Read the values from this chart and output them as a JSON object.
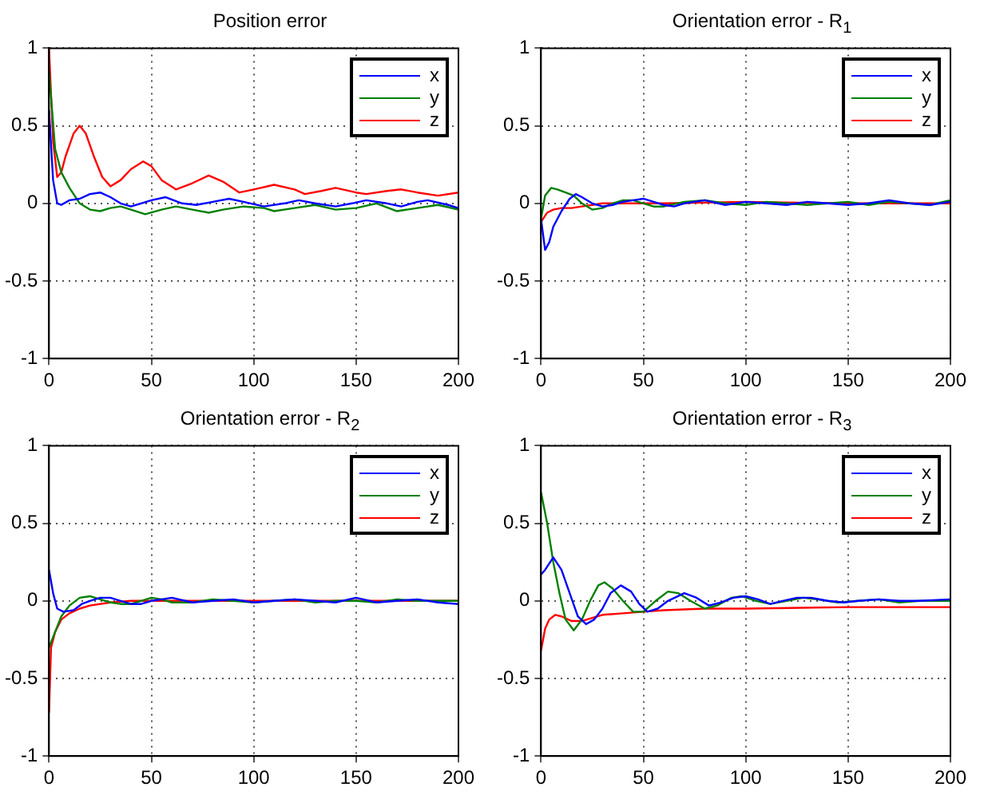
{
  "chart_data": [
    {
      "type": "line",
      "title": "Position error",
      "xlim": [
        0,
        200
      ],
      "xticks": [
        0,
        50,
        100,
        150,
        200
      ],
      "ylim": [
        -1,
        1
      ],
      "yticks": [
        -1,
        -0.5,
        0,
        0.5,
        1
      ],
      "grid": true,
      "legend": "top right",
      "series": [
        {
          "name": "x",
          "color": "#0000ff",
          "x": [
            0,
            2,
            4,
            6,
            10,
            15,
            20,
            25,
            30,
            35,
            40,
            45,
            50,
            57,
            65,
            72,
            80,
            88,
            95,
            105,
            115,
            122,
            130,
            140,
            148,
            155,
            165,
            172,
            180,
            185,
            195,
            200
          ],
          "values": [
            0.6,
            0.15,
            0.0,
            -0.01,
            0.02,
            0.03,
            0.06,
            0.07,
            0.04,
            0.0,
            -0.02,
            0.0,
            0.02,
            0.04,
            0.0,
            -0.01,
            0.01,
            0.03,
            0.01,
            -0.02,
            0.0,
            0.02,
            0.0,
            -0.02,
            0.0,
            0.02,
            0.0,
            -0.02,
            0.01,
            0.02,
            -0.01,
            -0.03
          ]
        },
        {
          "name": "y",
          "color": "#008000",
          "x": [
            0,
            3,
            6,
            10,
            15,
            20,
            25,
            30,
            35,
            40,
            47,
            55,
            62,
            70,
            78,
            85,
            95,
            105,
            110,
            120,
            130,
            140,
            150,
            160,
            170,
            180,
            190,
            200
          ],
          "values": [
            0.85,
            0.35,
            0.2,
            0.1,
            0.0,
            -0.04,
            -0.05,
            -0.03,
            -0.02,
            -0.04,
            -0.07,
            -0.04,
            -0.02,
            -0.04,
            -0.06,
            -0.04,
            -0.02,
            -0.03,
            -0.05,
            -0.03,
            -0.01,
            -0.04,
            -0.03,
            0.0,
            -0.05,
            -0.03,
            -0.01,
            -0.04
          ]
        },
        {
          "name": "z",
          "color": "#ff0000",
          "x": [
            0,
            2,
            4,
            6,
            8,
            12,
            15,
            18,
            22,
            26,
            30,
            35,
            40,
            46,
            50,
            55,
            62,
            70,
            78,
            85,
            93,
            100,
            110,
            120,
            125,
            133,
            140,
            150,
            155,
            165,
            172,
            180,
            190,
            200
          ],
          "values": [
            1.0,
            0.4,
            0.17,
            0.2,
            0.3,
            0.45,
            0.5,
            0.45,
            0.3,
            0.17,
            0.11,
            0.15,
            0.22,
            0.27,
            0.24,
            0.15,
            0.09,
            0.13,
            0.18,
            0.14,
            0.07,
            0.09,
            0.12,
            0.09,
            0.06,
            0.08,
            0.1,
            0.07,
            0.06,
            0.08,
            0.09,
            0.07,
            0.05,
            0.07
          ]
        }
      ]
    },
    {
      "type": "line",
      "title": "Orientation error - R$_{1}$",
      "xlim": [
        0,
        200
      ],
      "xticks": [
        0,
        50,
        100,
        150,
        200
      ],
      "ylim": [
        -1,
        1
      ],
      "yticks": [
        -1,
        -0.5,
        0,
        0.5,
        1
      ],
      "grid": true,
      "legend": "top right",
      "series": [
        {
          "name": "x",
          "color": "#0000ff",
          "x": [
            0,
            2,
            4,
            6,
            10,
            14,
            17,
            20,
            25,
            30,
            35,
            40,
            45,
            50,
            55,
            60,
            65,
            70,
            80,
            90,
            100,
            110,
            120,
            130,
            140,
            150,
            160,
            170,
            180,
            190,
            200
          ],
          "values": [
            -0.1,
            -0.3,
            -0.25,
            -0.15,
            -0.05,
            0.03,
            0.06,
            0.04,
            0.0,
            -0.02,
            -0.01,
            0.01,
            0.02,
            0.03,
            0.01,
            -0.01,
            -0.02,
            0.0,
            0.02,
            -0.01,
            0.01,
            0.0,
            -0.01,
            0.01,
            0.0,
            -0.01,
            0.0,
            0.02,
            0.0,
            -0.01,
            0.01
          ]
        },
        {
          "name": "y",
          "color": "#008000",
          "x": [
            0,
            2,
            5,
            8,
            12,
            16,
            20,
            25,
            30,
            35,
            40,
            45,
            50,
            55,
            60,
            70,
            80,
            90,
            100,
            110,
            120,
            130,
            140,
            150,
            160,
            170,
            180,
            190,
            200
          ],
          "values": [
            -0.1,
            0.05,
            0.1,
            0.09,
            0.07,
            0.05,
            0.0,
            -0.04,
            -0.03,
            0.0,
            0.02,
            0.02,
            0.0,
            -0.02,
            -0.02,
            0.01,
            0.02,
            0.0,
            -0.01,
            0.01,
            0.0,
            -0.01,
            0.0,
            0.01,
            -0.01,
            0.01,
            0.0,
            -0.01,
            0.02
          ]
        },
        {
          "name": "z",
          "color": "#ff0000",
          "x": [
            0,
            3,
            6,
            10,
            15,
            20,
            25,
            30,
            40,
            60,
            100,
            150,
            200
          ],
          "values": [
            -0.12,
            -0.06,
            -0.04,
            -0.03,
            -0.03,
            -0.02,
            -0.01,
            0.0,
            0.0,
            0.0,
            0.01,
            0.0,
            0.0
          ]
        }
      ]
    },
    {
      "type": "line",
      "title": "Orientation error - R$_{2}$",
      "xlim": [
        0,
        200
      ],
      "xticks": [
        0,
        50,
        100,
        150,
        200
      ],
      "ylim": [
        -1,
        1
      ],
      "yticks": [
        -1,
        -0.5,
        0,
        0.5,
        1
      ],
      "grid": true,
      "legend": "top right",
      "series": [
        {
          "name": "x",
          "color": "#0000ff",
          "x": [
            0,
            2,
            4,
            7,
            12,
            16,
            20,
            25,
            30,
            35,
            40,
            45,
            50,
            55,
            60,
            70,
            80,
            90,
            100,
            110,
            120,
            130,
            140,
            150,
            160,
            170,
            180,
            190,
            200
          ],
          "values": [
            0.2,
            0.05,
            -0.05,
            -0.07,
            -0.06,
            -0.02,
            0.0,
            0.02,
            0.02,
            0.0,
            -0.02,
            -0.02,
            0.0,
            0.01,
            0.02,
            -0.01,
            0.0,
            0.01,
            -0.01,
            0.0,
            0.01,
            0.0,
            -0.01,
            0.02,
            -0.01,
            0.0,
            0.01,
            -0.01,
            -0.02
          ]
        },
        {
          "name": "y",
          "color": "#008000",
          "x": [
            0,
            3,
            6,
            10,
            15,
            20,
            25,
            30,
            35,
            40,
            45,
            50,
            55,
            60,
            70,
            80,
            90,
            100,
            110,
            120,
            130,
            140,
            150,
            160,
            170,
            180,
            190,
            200
          ],
          "values": [
            -0.3,
            -0.2,
            -0.1,
            -0.03,
            0.02,
            0.03,
            0.01,
            -0.01,
            -0.02,
            -0.02,
            0.0,
            0.02,
            0.01,
            -0.01,
            -0.01,
            0.01,
            0.0,
            -0.01,
            0.0,
            0.01,
            -0.01,
            0.0,
            0.0,
            -0.01,
            0.01,
            0.0,
            0.0,
            0.0
          ]
        },
        {
          "name": "z",
          "color": "#ff0000",
          "x": [
            0,
            1,
            3,
            6,
            10,
            15,
            20,
            30,
            40,
            60,
            100,
            150,
            200
          ],
          "values": [
            -0.72,
            -0.3,
            -0.2,
            -0.12,
            -0.08,
            -0.05,
            -0.03,
            -0.01,
            0.0,
            0.0,
            0.0,
            0.0,
            0.0
          ]
        }
      ]
    },
    {
      "type": "line",
      "title": "Orientation error - R$_{3}$",
      "xlim": [
        0,
        200
      ],
      "xticks": [
        0,
        50,
        100,
        150,
        200
      ],
      "ylim": [
        -1,
        1
      ],
      "yticks": [
        -1,
        -0.5,
        0,
        0.5,
        1
      ],
      "grid": true,
      "legend": "top right",
      "series": [
        {
          "name": "x",
          "color": "#0000ff",
          "x": [
            0,
            2,
            6,
            10,
            14,
            18,
            22,
            26,
            30,
            34,
            39,
            44,
            48,
            52,
            57,
            62,
            70,
            76,
            82,
            88,
            94,
            100,
            106,
            112,
            118,
            125,
            132,
            140,
            148,
            155,
            165,
            175,
            185,
            200
          ],
          "values": [
            0.17,
            0.2,
            0.28,
            0.2,
            0.05,
            -0.1,
            -0.15,
            -0.12,
            -0.05,
            0.05,
            0.1,
            0.06,
            -0.02,
            -0.07,
            -0.05,
            0.0,
            0.05,
            0.02,
            -0.03,
            -0.01,
            0.02,
            0.03,
            0.01,
            -0.02,
            0.0,
            0.02,
            0.02,
            0.0,
            -0.01,
            0.0,
            0.01,
            0.0,
            0.0,
            0.01
          ]
        },
        {
          "name": "y",
          "color": "#008000",
          "x": [
            0,
            3,
            6,
            9,
            12,
            16,
            20,
            24,
            28,
            31,
            35,
            40,
            45,
            50,
            56,
            62,
            67,
            73,
            80,
            86,
            93,
            98,
            105,
            112,
            120,
            128,
            135,
            145,
            155,
            165,
            175,
            185,
            200
          ],
          "values": [
            0.7,
            0.5,
            0.25,
            0.05,
            -0.12,
            -0.19,
            -0.12,
            0.0,
            0.1,
            0.12,
            0.08,
            0.0,
            -0.07,
            -0.07,
            0.0,
            0.06,
            0.05,
            0.0,
            -0.05,
            -0.03,
            0.02,
            0.03,
            0.0,
            -0.02,
            0.0,
            0.02,
            0.01,
            -0.01,
            0.0,
            0.01,
            -0.01,
            0.0,
            0.0
          ]
        },
        {
          "name": "z",
          "color": "#ff0000",
          "x": [
            0,
            2,
            4,
            7,
            10,
            15,
            20,
            25,
            30,
            40,
            50,
            60,
            80,
            100,
            150,
            200
          ],
          "values": [
            -0.32,
            -0.18,
            -0.12,
            -0.09,
            -0.1,
            -0.13,
            -0.13,
            -0.11,
            -0.09,
            -0.08,
            -0.07,
            -0.06,
            -0.05,
            -0.05,
            -0.04,
            -0.04
          ]
        }
      ]
    }
  ]
}
